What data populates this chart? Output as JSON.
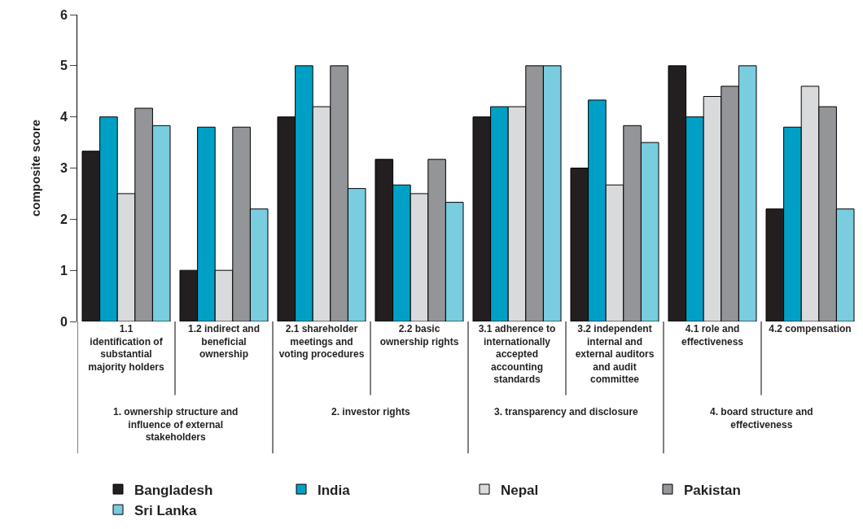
{
  "chart_data": {
    "type": "bar",
    "ylabel": "composite score",
    "categories": [
      "1.1 identification of substantial majority holders",
      "1.2 indirect and beneficial ownership",
      "2.1 shareholder meetings and voting procedures",
      "2.2 basic ownership rights",
      "3.1 adherence to internationally accepted accounting standards",
      "3.2 independent internal and external auditors and audit committee",
      "4.1 role and effectiveness",
      "4.2 compensation"
    ],
    "series": [
      {
        "name": "Bangladesh",
        "color": "#231f20",
        "values": [
          3.33,
          1,
          4,
          3.17,
          4,
          3,
          5,
          2.2
        ]
      },
      {
        "name": "India",
        "color": "#00a0c6",
        "values": [
          4,
          3.8,
          5,
          2.67,
          4.2,
          4.33,
          4,
          3.8
        ]
      },
      {
        "name": "Nepal",
        "color": "#d9dadb",
        "values": [
          2.5,
          1,
          4.2,
          2.5,
          4.2,
          2.67,
          4.4,
          4.6
        ]
      },
      {
        "name": "Pakistan",
        "color": "#939598",
        "values": [
          4.17,
          3.8,
          5,
          3.17,
          5,
          3.83,
          4.6,
          4.2
        ]
      },
      {
        "name": "Sri Lanka",
        "color": "#7accdf",
        "values": [
          3.83,
          2.2,
          2.6,
          2.33,
          5,
          3.5,
          5,
          2.2
        ]
      }
    ],
    "annotations": [
      "1. ownership structure and influence of external stakeholders",
      "2. investor rights",
      "3. transparency and disclosure",
      "4. board structure and effectiveness"
    ],
    "ylim": [
      0,
      6
    ],
    "yticks": [
      0,
      1,
      2,
      3,
      4,
      5,
      6
    ],
    "grid": false,
    "legend": "bottom"
  }
}
